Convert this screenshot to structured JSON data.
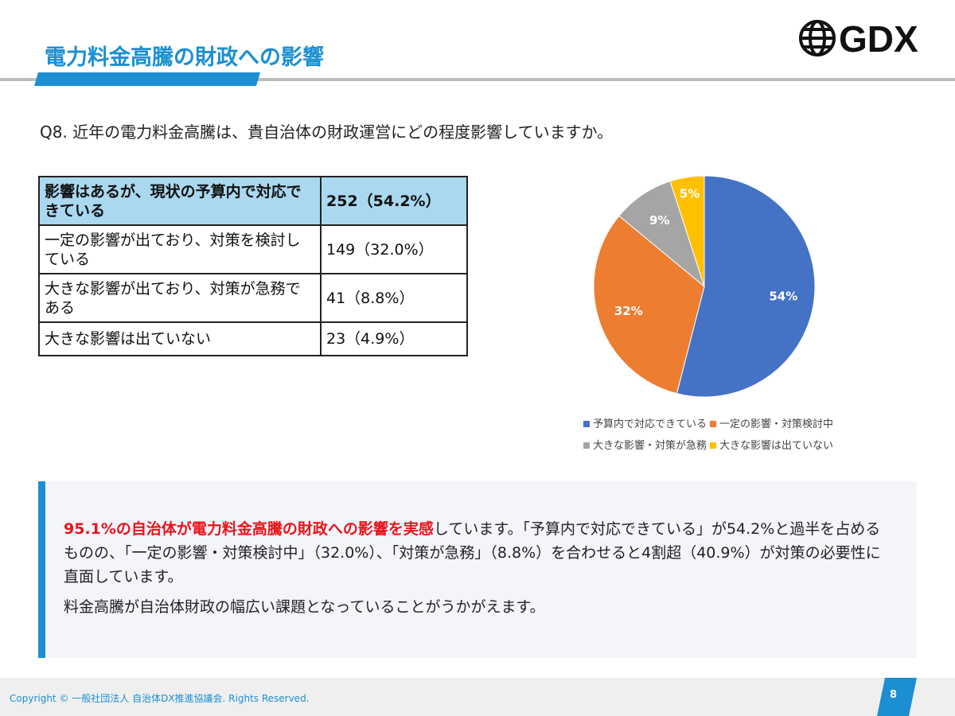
{
  "header": {
    "title": "電力料金高騰の財政への影響",
    "logo": "GDX"
  },
  "question": "Q8. 近年の電力料金高騰は、貴自治体の財政運営にどの程度影響していますか。",
  "table": {
    "rows": [
      [
        "影響はあるが、現状の予算内で対応できている",
        "252（54.2%）"
      ],
      [
        "一定の影響が出ており、対策を検討している",
        "149（32.0%）"
      ],
      [
        "大きな影響が出ており、対策が急務である",
        "41（8.8%）"
      ],
      [
        "大きな影響は出ていない",
        "23（4.9%）"
      ]
    ]
  },
  "chart_data": {
    "type": "pie",
    "categories": [
      "予算内で対応できている",
      "一定の影響・対策検討中",
      "大きな影響・対策が急務",
      "大きな影響は出ていない"
    ],
    "values": [
      54,
      32,
      9,
      5
    ],
    "value_labels": [
      "54%",
      "32%",
      "9%",
      "5%"
    ],
    "colors": [
      "#4472c4",
      "#ed7d31",
      "#a5a5a5",
      "#ffc000"
    ]
  },
  "summary": {
    "highlight": "95.1%の自治体が電力料金高騰の財政への影響を実感",
    "text": "しています。「予算内で対応できている」が54.2%と過半を占めるものの、「一定の影響・対策検討中」（32.0%）、「対策が急務」（8.8%）を合わせると4割超（40.9%）が対策の必要性に直面しています。",
    "text2": "料金高騰が自治体財政の幅広い課題となっていることがうかがえます。"
  },
  "footer": {
    "copyright": "Copyright © 一般社団法人 自治体DX推進協議会. Rights Reserved.",
    "page": "8"
  }
}
